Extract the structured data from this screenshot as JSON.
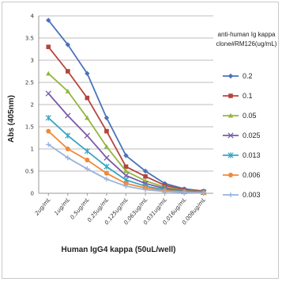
{
  "chart_data": {
    "type": "line",
    "title": "",
    "xlabel": "Human IgG4 kappa (50uL/well)",
    "ylabel": "Abs (405nm)",
    "ylim": [
      0,
      4
    ],
    "yticks": [
      "0",
      "0.5",
      "1",
      "1.5",
      "2",
      "2.5",
      "3",
      "3.5",
      "4"
    ],
    "grid": true,
    "legend_title": [
      "anti-human Ig kappa",
      "clone#RM126(ug/mL)"
    ],
    "legend_position": "right",
    "categories": [
      "2ug/mL",
      "1ug/mL",
      "0.5ug/mL",
      "0.25ug/mL",
      "0.125ug/mL",
      "0.063ug/mL",
      "0.031ug/mL",
      "0.016ug/mL",
      "0.008ug/mL"
    ],
    "series": [
      {
        "name": "0.2",
        "color": "#4a73b8",
        "marker": "diamond",
        "values": [
          3.9,
          3.35,
          2.7,
          1.7,
          0.85,
          0.5,
          0.22,
          0.1,
          0.05
        ]
      },
      {
        "name": "0.1",
        "color": "#b5443e",
        "marker": "square",
        "values": [
          3.3,
          2.75,
          2.15,
          1.4,
          0.6,
          0.38,
          0.18,
          0.08,
          0.04
        ]
      },
      {
        "name": "0.05",
        "color": "#93b63e",
        "marker": "triangle",
        "values": [
          2.7,
          2.3,
          1.7,
          1.05,
          0.5,
          0.28,
          0.14,
          0.06,
          0.03
        ]
      },
      {
        "name": "0.025",
        "color": "#7a5aa6",
        "marker": "x",
        "values": [
          2.25,
          1.75,
          1.3,
          0.8,
          0.4,
          0.22,
          0.11,
          0.05,
          0.02
        ]
      },
      {
        "name": "0.013",
        "color": "#3aa4c2",
        "marker": "star",
        "values": [
          1.7,
          1.3,
          0.95,
          0.6,
          0.3,
          0.16,
          0.08,
          0.04,
          0.02
        ]
      },
      {
        "name": "0.006",
        "color": "#ee8a3a",
        "marker": "circle",
        "values": [
          1.4,
          1.0,
          0.75,
          0.45,
          0.22,
          0.12,
          0.06,
          0.03,
          0.01
        ]
      },
      {
        "name": "0.003",
        "color": "#9ab3dc",
        "marker": "plus",
        "values": [
          1.1,
          0.8,
          0.55,
          0.32,
          0.16,
          0.08,
          0.04,
          0.02,
          0.01
        ]
      }
    ]
  }
}
